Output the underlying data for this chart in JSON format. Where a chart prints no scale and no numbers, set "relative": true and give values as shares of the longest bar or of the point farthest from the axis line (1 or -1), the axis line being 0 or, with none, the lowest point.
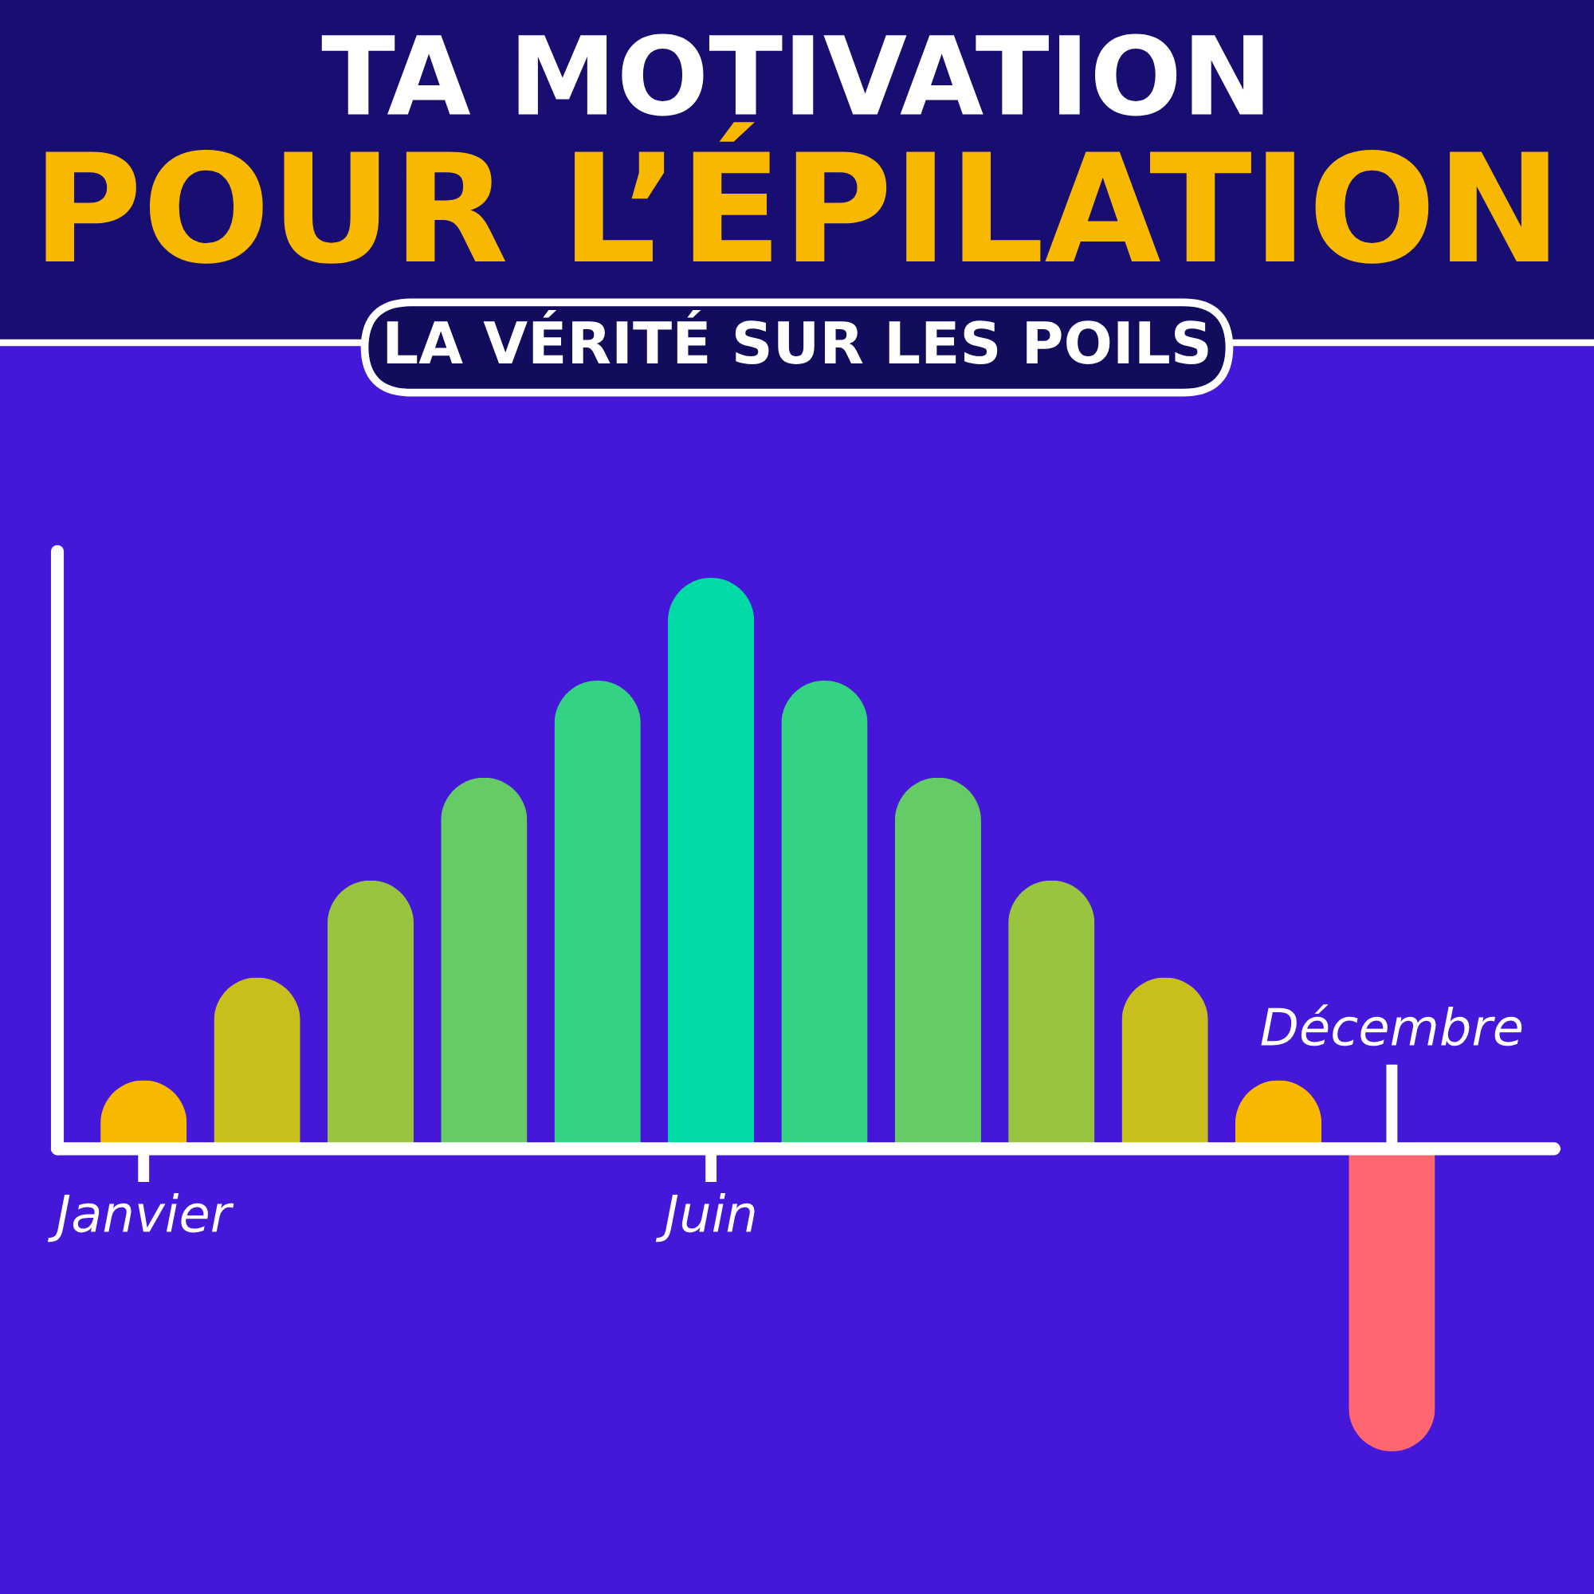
{
  "chart_data": {
    "type": "bar",
    "title": "TA MOTIVATION",
    "subtitle": "POUR L’ÉPILATION",
    "annotations": [
      "LA VÉRITÉ SUR LES POILS"
    ],
    "categories": [
      "Janvier",
      null,
      null,
      null,
      null,
      "Juin",
      null,
      null,
      null,
      null,
      null,
      "Décembre"
    ],
    "values": [
      0.12,
      0.3,
      0.47,
      0.65,
      0.82,
      1,
      0.82,
      0.65,
      0.47,
      0.3,
      0.12,
      -0.53
    ],
    "colors": [
      "#f9b800",
      "#c8bf1f",
      "#98c440",
      "#65cb66",
      "#33d383",
      "#00dba6",
      "#33d383",
      "#65cb66",
      "#98c440",
      "#c8bf1f",
      "#f9b800",
      "#ff6670"
    ],
    "relative": true
  }
}
